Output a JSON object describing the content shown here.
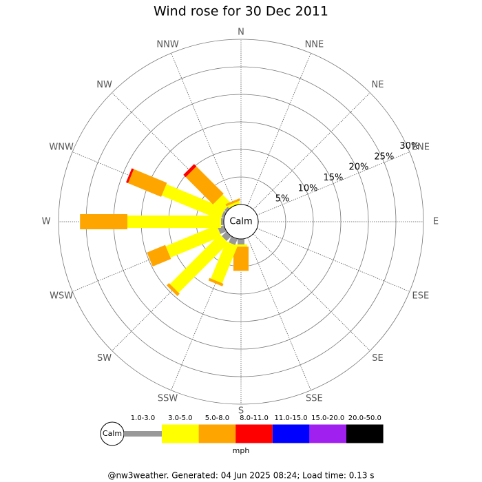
{
  "chart_data": {
    "type": "windrose",
    "title": "Wind rose for 30 Dec 2011",
    "categories": [
      "N",
      "NNE",
      "NE",
      "ENE",
      "E",
      "ESE",
      "SE",
      "SSE",
      "S",
      "SSW",
      "SW",
      "WSW",
      "W",
      "WNW",
      "NW",
      "NNW"
    ],
    "rlim": [
      0,
      30
    ],
    "rticks": [
      {
        "value": 5,
        "label": "5%"
      },
      {
        "value": 10,
        "label": "10%"
      },
      {
        "value": 15,
        "label": "15%"
      },
      {
        "value": 20,
        "label": "20%"
      },
      {
        "value": 25,
        "label": "25%"
      },
      {
        "value": 30,
        "label": "30%"
      }
    ],
    "center_label": "Calm",
    "series": [
      {
        "name": "1.0-3.0",
        "color": "#999999",
        "values": [
          0,
          0,
          0,
          0,
          0,
          0,
          0,
          0,
          1,
          1.2,
          1.2,
          1.2,
          0.5,
          0.5,
          0.5,
          0
        ]
      },
      {
        "name": "3.0-5.0",
        "color": "#ffff00",
        "values": [
          0,
          0,
          0,
          0,
          0,
          0,
          0,
          0,
          0.4,
          7.3,
          12.8,
          10,
          17,
          11.5,
          2.2,
          0.5
        ]
      },
      {
        "name": "5.0-8.0",
        "color": "#ffa500",
        "values": [
          0,
          0,
          0,
          0,
          0,
          0,
          0,
          0,
          4.4,
          0.5,
          0.6,
          3.6,
          8.6,
          6.5,
          7,
          0.4
        ]
      },
      {
        "name": "8.0-11.0",
        "color": "#ff0000",
        "values": [
          0,
          0,
          0,
          0,
          0,
          0,
          0,
          0,
          0,
          0,
          0,
          0,
          0,
          0.4,
          0.6,
          0
        ]
      },
      {
        "name": "11.0-15.0",
        "color": "#0000ff",
        "values": [
          0,
          0,
          0,
          0,
          0,
          0,
          0,
          0,
          0,
          0,
          0,
          0,
          0,
          0,
          0,
          0
        ]
      },
      {
        "name": "15.0-20.0",
        "color": "#a020f0",
        "values": [
          0,
          0,
          0,
          0,
          0,
          0,
          0,
          0,
          0,
          0,
          0,
          0,
          0,
          0,
          0,
          0
        ]
      },
      {
        "name": "20.0-50.0",
        "color": "#000000",
        "values": [
          0,
          0,
          0,
          0,
          0,
          0,
          0,
          0,
          0,
          0,
          0,
          0,
          0,
          0,
          0,
          0
        ]
      }
    ],
    "legend_unit": "mph",
    "footer": "@nw3weather. Generated: 04 Jun 2025 08:24; Load time: 0.13 s"
  }
}
